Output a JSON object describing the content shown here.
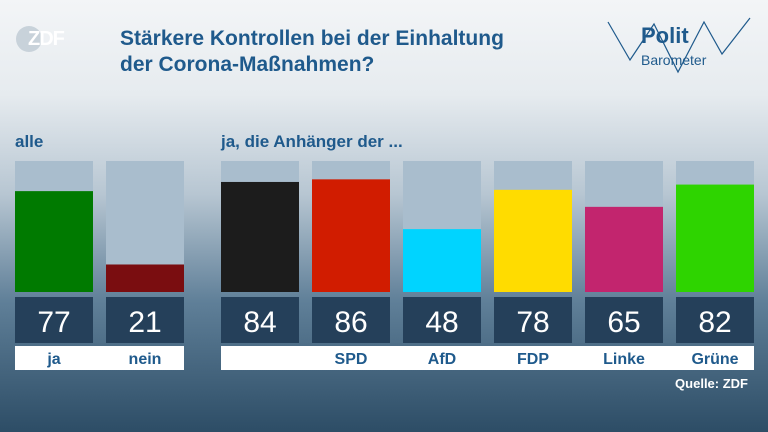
{
  "brand": {
    "logo_text": "ZDF"
  },
  "header": {
    "title_line1": "Stärkere Kontrollen bei der Einhaltung",
    "title_line2": "der Corona-Maßnahmen?"
  },
  "polit_logo": {
    "line1": "Polit",
    "line2": "Barometer"
  },
  "source": "Quelle: ZDF",
  "colors": {
    "title": "#1f5a8c",
    "bar_bg": "#a9bdcd",
    "value_box": "#25405a",
    "label_strip": "#ffffff"
  },
  "chart_data": {
    "type": "bar",
    "title": "Stärkere Kontrollen bei der Einhaltung der Corona-Maßnahmen?",
    "ylim": [
      0,
      100
    ],
    "unit": "%",
    "grid": false,
    "groups": [
      {
        "label": "alle",
        "bars": [
          {
            "category": "ja",
            "value": 77,
            "color": "#007a00"
          },
          {
            "category": "nein",
            "value": 21,
            "color": "#7a0d10"
          }
        ]
      },
      {
        "label": "ja, die Anhänger der ...",
        "bars": [
          {
            "category": "",
            "value": 84,
            "color": "#1c1c1c"
          },
          {
            "category": "SPD",
            "value": 86,
            "color": "#d11c00"
          },
          {
            "category": "AfD",
            "value": 48,
            "color": "#00d4ff"
          },
          {
            "category": "FDP",
            "value": 78,
            "color": "#ffdc00"
          },
          {
            "category": "Linke",
            "value": 65,
            "color": "#c2256e"
          },
          {
            "category": "Grüne",
            "value": 82,
            "color": "#2ed400"
          }
        ]
      }
    ]
  }
}
